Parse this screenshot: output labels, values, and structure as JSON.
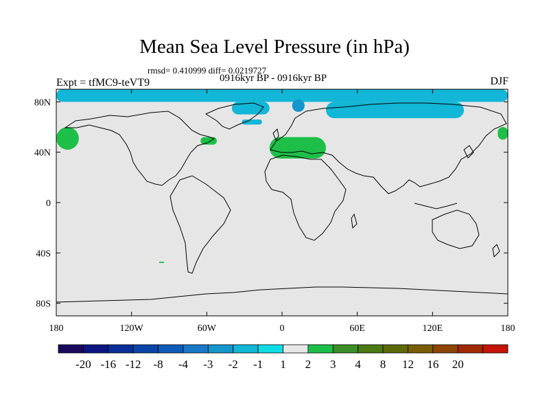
{
  "chart_data": {
    "type": "heatmap",
    "title": "Mean Sea Level Pressure (in hPa)",
    "stats_text": "rmsd= 0.410999  diff= 0.0219727",
    "subtitle": "0916kyr BP - 0916kyr BP",
    "left_label": "Expt = tfMC9-teVT9",
    "right_label": "DJF",
    "projection": "cylindrical-equidistant",
    "lon_range": [
      -180,
      180
    ],
    "lat_range": [
      -90,
      90
    ],
    "x_ticks": [
      {
        "value": -180,
        "label": "180"
      },
      {
        "value": -120,
        "label": "120W"
      },
      {
        "value": -60,
        "label": "60W"
      },
      {
        "value": 0,
        "label": "0"
      },
      {
        "value": 60,
        "label": "60E"
      },
      {
        "value": 120,
        "label": "120E"
      },
      {
        "value": 180,
        "label": "180"
      }
    ],
    "y_ticks": [
      {
        "value": 80,
        "label": "80N"
      },
      {
        "value": 40,
        "label": "40N"
      },
      {
        "value": 0,
        "label": "0"
      },
      {
        "value": -40,
        "label": "40S"
      },
      {
        "value": -80,
        "label": "80S"
      }
    ],
    "colorbar": {
      "colors": [
        "#1a0a5e",
        "#0c1580",
        "#0a2e9a",
        "#0a45a8",
        "#0f5cb8",
        "#1a78c8",
        "#1596cc",
        "#12b6d6",
        "#0fdde6",
        "#e6e6e6",
        "#1ebf48",
        "#3c8f28",
        "#4a7a14",
        "#5e6a0a",
        "#7a5e06",
        "#8e4604",
        "#a02a02",
        "#c41408"
      ],
      "labels": [
        "-20",
        "-16",
        "-12",
        "-8",
        "-4",
        "-3",
        "-2",
        "-1",
        "1",
        "2",
        "3",
        "4",
        "8",
        "12",
        "16",
        "20"
      ]
    },
    "anomaly_regions": [
      {
        "name": "arctic-low-band",
        "category": "-2 to -1",
        "lon": [
          -180,
          180
        ],
        "lat": [
          80,
          90
        ]
      },
      {
        "name": "siberian-low-band",
        "category": "-2 to -1",
        "lon": [
          35,
          145
        ],
        "lat": [
          67,
          80
        ]
      },
      {
        "name": "greenland-sea-low",
        "category": "-2 to -1",
        "lon": [
          -40,
          -10
        ],
        "lat": [
          70,
          80
        ]
      },
      {
        "name": "iceland-low",
        "category": "-2 to -1",
        "lon": [
          -32,
          -16
        ],
        "lat": [
          62,
          66
        ]
      },
      {
        "name": "norwegian-sea-low",
        "category": "-3 to -2",
        "lon": [
          8,
          18
        ],
        "lat": [
          72,
          82
        ]
      },
      {
        "name": "north-pacific-high-west",
        "category": "1 to 2",
        "lon": [
          -180,
          -162
        ],
        "lat": [
          42,
          60
        ]
      },
      {
        "name": "north-pacific-high-east",
        "category": "1 to 2",
        "lon": [
          172,
          180
        ],
        "lat": [
          50,
          60
        ]
      },
      {
        "name": "newfoundland-high",
        "category": "1 to 2",
        "lon": [
          -65,
          -52
        ],
        "lat": [
          46,
          52
        ]
      },
      {
        "name": "mediterranean-high",
        "category": "1 to 2",
        "lon": [
          -10,
          35
        ],
        "lat": [
          35,
          52
        ]
      },
      {
        "name": "south-pacific-high",
        "category": "1 to 2",
        "lon": [
          -98,
          -94
        ],
        "lat": [
          -48,
          -47
        ]
      }
    ]
  }
}
